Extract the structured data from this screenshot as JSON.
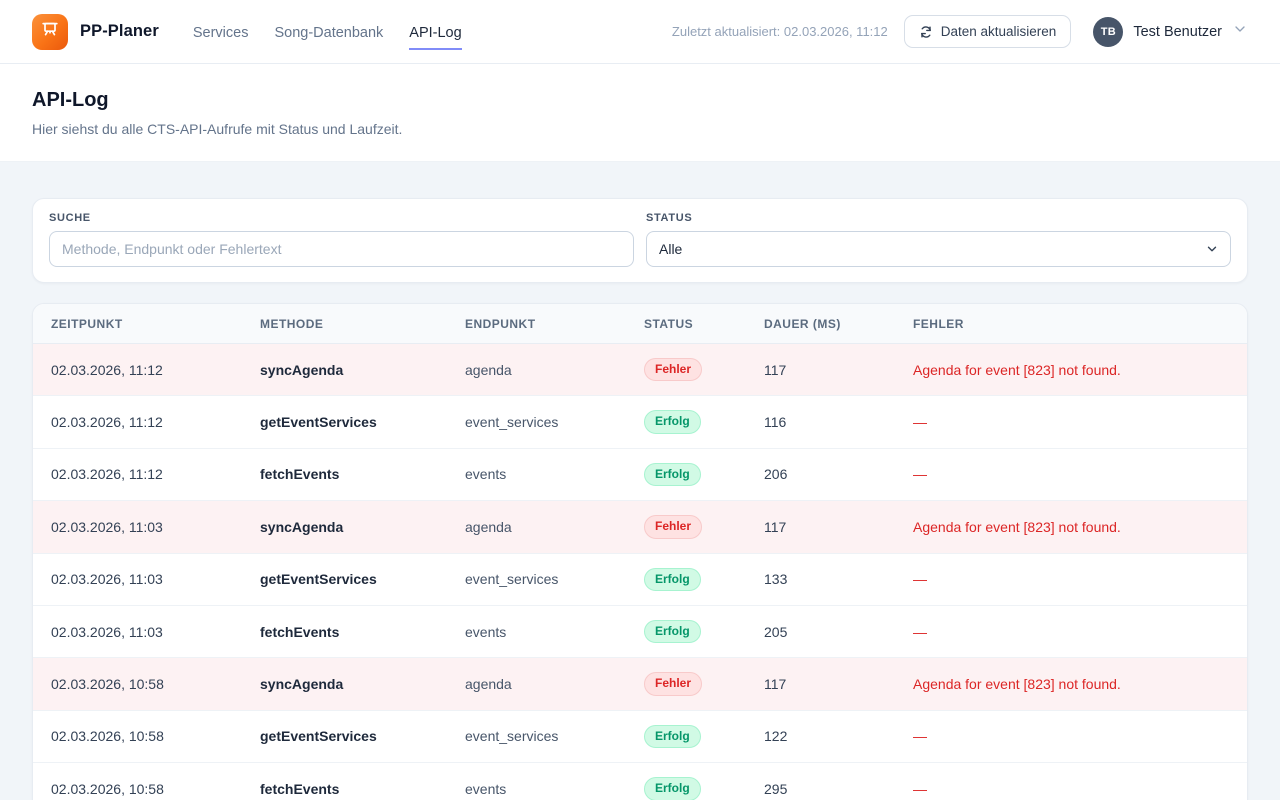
{
  "header": {
    "brand": "PP-Planer",
    "nav": [
      {
        "label": "Services",
        "active": false
      },
      {
        "label": "Song-Datenbank",
        "active": false
      },
      {
        "label": "API-Log",
        "active": true
      }
    ],
    "last_updated": "Zuletzt aktualisiert: 02.03.2026, 11:12",
    "refresh_button_label": "Daten aktualisieren",
    "user": {
      "initials": "TB",
      "name": "Test Benutzer"
    }
  },
  "page": {
    "title": "API-Log",
    "subtitle": "Hier siehst du alle CTS-API-Aufrufe mit Status und Laufzeit."
  },
  "filters": {
    "search": {
      "label": "SUCHE",
      "placeholder": "Methode, Endpunkt oder Fehlertext",
      "value": ""
    },
    "status": {
      "label": "STATUS",
      "selected": "Alle"
    }
  },
  "table": {
    "columns": [
      "ZEITPUNKT",
      "METHODE",
      "ENDPUNKT",
      "STATUS",
      "DAUER (MS)",
      "FEHLER"
    ],
    "rows": [
      {
        "zeitpunkt": "02.03.2026, 11:12",
        "methode": "syncAgenda",
        "endpunkt": "agenda",
        "status": "Fehler",
        "status_type": "error",
        "dauer": "117",
        "fehler": "Agenda for event [823] not found."
      },
      {
        "zeitpunkt": "02.03.2026, 11:12",
        "methode": "getEventServices",
        "endpunkt": "event_services",
        "status": "Erfolg",
        "status_type": "success",
        "dauer": "116",
        "fehler": "—"
      },
      {
        "zeitpunkt": "02.03.2026, 11:12",
        "methode": "fetchEvents",
        "endpunkt": "events",
        "status": "Erfolg",
        "status_type": "success",
        "dauer": "206",
        "fehler": "—"
      },
      {
        "zeitpunkt": "02.03.2026, 11:03",
        "methode": "syncAgenda",
        "endpunkt": "agenda",
        "status": "Fehler",
        "status_type": "error",
        "dauer": "117",
        "fehler": "Agenda for event [823] not found."
      },
      {
        "zeitpunkt": "02.03.2026, 11:03",
        "methode": "getEventServices",
        "endpunkt": "event_services",
        "status": "Erfolg",
        "status_type": "success",
        "dauer": "133",
        "fehler": "—"
      },
      {
        "zeitpunkt": "02.03.2026, 11:03",
        "methode": "fetchEvents",
        "endpunkt": "events",
        "status": "Erfolg",
        "status_type": "success",
        "dauer": "205",
        "fehler": "—"
      },
      {
        "zeitpunkt": "02.03.2026, 10:58",
        "methode": "syncAgenda",
        "endpunkt": "agenda",
        "status": "Fehler",
        "status_type": "error",
        "dauer": "117",
        "fehler": "Agenda for event [823] not found."
      },
      {
        "zeitpunkt": "02.03.2026, 10:58",
        "methode": "getEventServices",
        "endpunkt": "event_services",
        "status": "Erfolg",
        "status_type": "success",
        "dauer": "122",
        "fehler": "—"
      },
      {
        "zeitpunkt": "02.03.2026, 10:58",
        "methode": "fetchEvents",
        "endpunkt": "events",
        "status": "Erfolg",
        "status_type": "success",
        "dauer": "295",
        "fehler": "—"
      }
    ]
  },
  "colors": {
    "brand_orange_start": "#fb923c",
    "brand_orange_end": "#ea580c",
    "nav_active_underline": "#818cf8",
    "error_text": "#dc2626",
    "error_badge_bg": "#fee2e2",
    "error_row_bg": "#fdf2f3",
    "success_text": "#059669",
    "success_badge_bg": "#d1fae5",
    "avatar_bg": "#475569",
    "page_bg": "#f1f5f9"
  }
}
